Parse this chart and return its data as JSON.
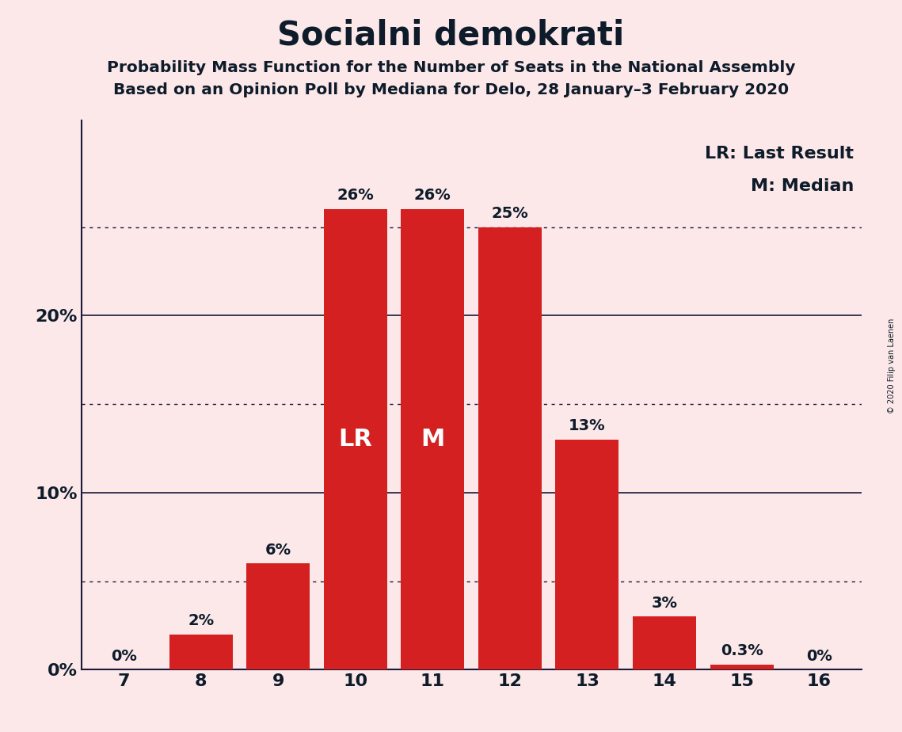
{
  "title": "Socialni demokrati",
  "subtitle1": "Probability Mass Function for the Number of Seats in the National Assembly",
  "subtitle2": "Based on an Opinion Poll by Mediana for Delo, 28 January–3 February 2020",
  "copyright": "© 2020 Filip van Laenen",
  "categories": [
    7,
    8,
    9,
    10,
    11,
    12,
    13,
    14,
    15,
    16
  ],
  "values": [
    0.0,
    2.0,
    6.0,
    26.0,
    26.0,
    25.0,
    13.0,
    3.0,
    0.3,
    0.0
  ],
  "bar_labels": [
    "0%",
    "2%",
    "6%",
    "26%",
    "26%",
    "25%",
    "13%",
    "3%",
    "0.3%",
    "0%"
  ],
  "bar_color": "#d42020",
  "background_color": "#fce8e8",
  "text_color": "#0d1b2a",
  "label_color_inside": "#ffffff",
  "label_color_outside": "#0d1b2a",
  "lr_bar_index": 3,
  "median_bar_index": 4,
  "lr_label": "LR",
  "median_label": "M",
  "legend_lr": "LR: Last Result",
  "legend_m": "M: Median",
  "ylim": [
    0,
    31
  ],
  "dotted_lines": [
    5,
    15,
    25
  ],
  "solid_lines": [
    10,
    20
  ],
  "ytick_positions": [
    0,
    10,
    20
  ],
  "ytick_labels": [
    "0%",
    "10%",
    "20%"
  ],
  "title_fontsize": 30,
  "subtitle_fontsize": 14.5,
  "bar_label_fontsize": 14,
  "inside_label_fontsize": 22,
  "axis_tick_fontsize": 16,
  "legend_fontsize": 16,
  "bar_width": 0.82
}
